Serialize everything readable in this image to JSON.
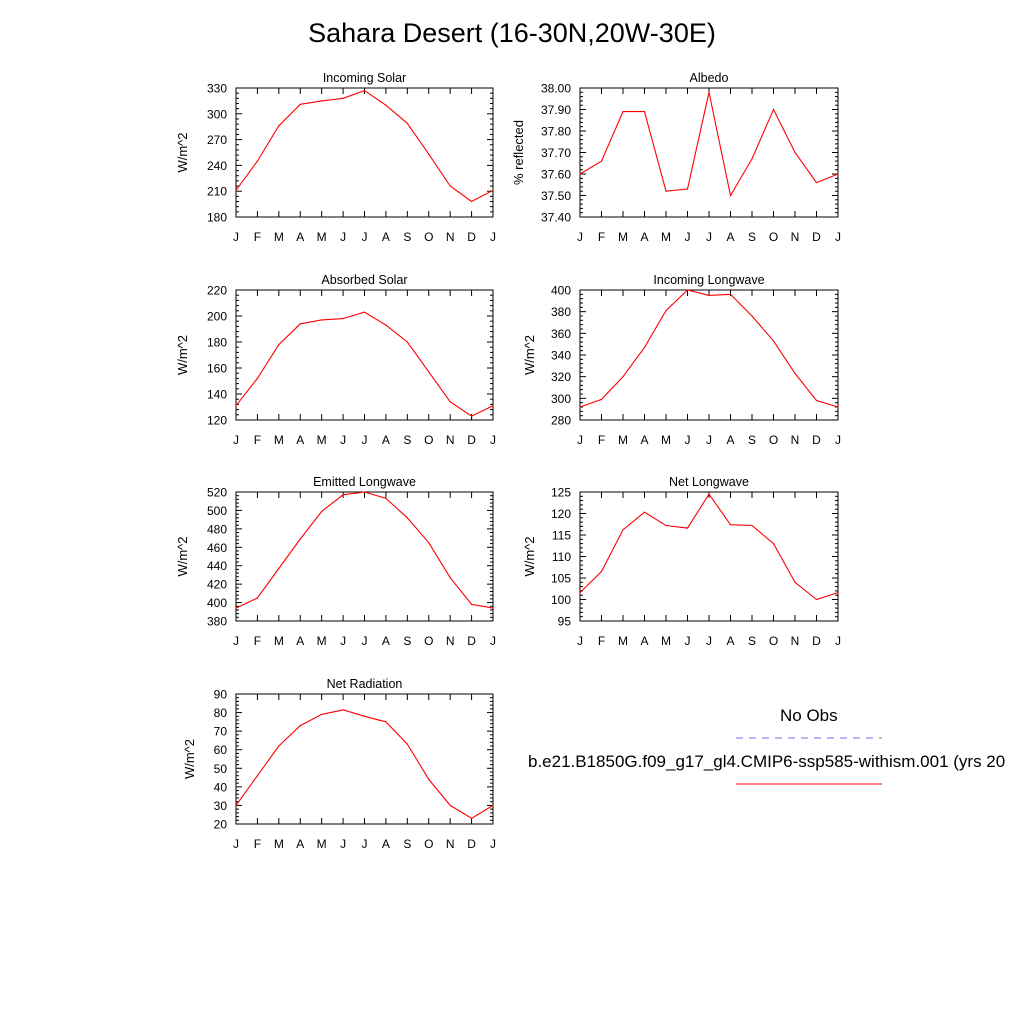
{
  "page_title": "Sahara Desert (16-30N,20W-30E)",
  "legend": {
    "obs_label": "No Obs",
    "obs_color": "#6f6ff0",
    "model_label": "b.e21.B1850G.f09_g17_gl4.CMIP6-ssp585-withism.001 (yrs 20",
    "model_color": "#ff0000"
  },
  "chart_data": [
    {
      "type": "line",
      "title": "Incoming Solar",
      "ylabel": "W/m^2",
      "categories": [
        "J",
        "F",
        "M",
        "A",
        "M",
        "J",
        "J",
        "A",
        "S",
        "O",
        "N",
        "D",
        "J"
      ],
      "ylim": [
        180,
        330
      ],
      "yticks": [
        "180",
        "210",
        "240",
        "270",
        "300",
        "330"
      ],
      "series": [
        {
          "color": "#ff0000",
          "values": [
            211,
            245,
            286,
            311,
            315,
            318,
            327,
            310,
            289,
            253,
            216,
            198,
            211
          ]
        }
      ]
    },
    {
      "type": "line",
      "title": "Albedo",
      "ylabel": "% reflected",
      "categories": [
        "J",
        "F",
        "M",
        "A",
        "M",
        "J",
        "J",
        "A",
        "S",
        "O",
        "N",
        "D",
        "J"
      ],
      "ylim": [
        37.4,
        38.0
      ],
      "yticks": [
        "37.40",
        "37.50",
        "37.60",
        "37.70",
        "37.80",
        "37.90",
        "38.00"
      ],
      "series": [
        {
          "color": "#ff0000",
          "values": [
            37.6,
            37.66,
            37.89,
            37.89,
            37.52,
            37.53,
            37.98,
            37.5,
            37.67,
            37.9,
            37.7,
            37.56,
            37.6
          ]
        }
      ]
    },
    {
      "type": "line",
      "title": "Absorbed Solar",
      "ylabel": "W/m^2",
      "categories": [
        "J",
        "F",
        "M",
        "A",
        "M",
        "J",
        "J",
        "A",
        "S",
        "O",
        "N",
        "D",
        "J"
      ],
      "ylim": [
        120,
        220
      ],
      "yticks": [
        "120",
        "140",
        "160",
        "180",
        "200",
        "220"
      ],
      "series": [
        {
          "color": "#ff0000",
          "values": [
            131,
            152,
            178,
            194,
            197,
            198,
            203,
            193,
            180,
            157,
            134,
            123,
            131
          ]
        }
      ]
    },
    {
      "type": "line",
      "title": "Incoming Longwave",
      "ylabel": "W/m^2",
      "categories": [
        "J",
        "F",
        "M",
        "A",
        "M",
        "J",
        "J",
        "A",
        "S",
        "O",
        "N",
        "D",
        "J"
      ],
      "ylim": [
        280,
        400
      ],
      "yticks": [
        "280",
        "300",
        "320",
        "340",
        "360",
        "380",
        "400"
      ],
      "series": [
        {
          "color": "#ff0000",
          "values": [
            292,
            299,
            320,
            347,
            381,
            400,
            395,
            396,
            376,
            353,
            323,
            298,
            292
          ]
        }
      ]
    },
    {
      "type": "line",
      "title": "Emitted Longwave",
      "ylabel": "W/m^2",
      "categories": [
        "J",
        "F",
        "M",
        "A",
        "M",
        "J",
        "J",
        "A",
        "S",
        "O",
        "N",
        "D",
        "J"
      ],
      "ylim": [
        380,
        520
      ],
      "yticks": [
        "380",
        "400",
        "420",
        "440",
        "460",
        "480",
        "500",
        "520"
      ],
      "series": [
        {
          "color": "#ff0000",
          "values": [
            394,
            405,
            437,
            469,
            499,
            517,
            520,
            513,
            492,
            465,
            427,
            398,
            394
          ]
        }
      ]
    },
    {
      "type": "line",
      "title": "Net Longwave",
      "ylabel": "W/m^2",
      "categories": [
        "J",
        "F",
        "M",
        "A",
        "M",
        "J",
        "J",
        "A",
        "S",
        "O",
        "N",
        "D",
        "J"
      ],
      "ylim": [
        95,
        125
      ],
      "yticks": [
        "95",
        "100",
        "105",
        "110",
        "115",
        "120",
        "125"
      ],
      "series": [
        {
          "color": "#ff0000",
          "values": [
            101.6,
            106.5,
            116.2,
            120.3,
            117.2,
            116.6,
            124.5,
            117.4,
            117.2,
            113,
            104,
            100,
            101.6
          ]
        }
      ]
    },
    {
      "type": "line",
      "title": "Net Radiation",
      "ylabel": "W/m^2",
      "categories": [
        "J",
        "F",
        "M",
        "A",
        "M",
        "J",
        "J",
        "A",
        "S",
        "O",
        "N",
        "D",
        "J"
      ],
      "ylim": [
        20,
        90
      ],
      "yticks": [
        "20",
        "30",
        "40",
        "50",
        "60",
        "70",
        "80",
        "90"
      ],
      "series": [
        {
          "color": "#ff0000",
          "values": [
            30,
            46,
            62,
            73,
            79,
            81.5,
            78,
            75,
            63,
            44,
            30,
            23,
            30
          ]
        }
      ]
    }
  ]
}
